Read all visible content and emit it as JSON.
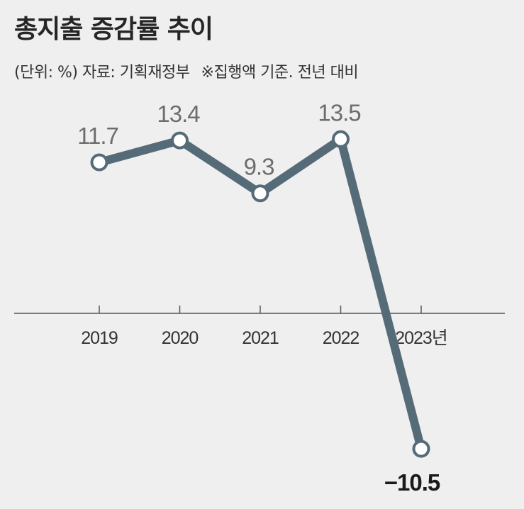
{
  "header": {
    "title": "총지출 증감률 추이",
    "unit_note": "(단위: %) 자료: 기획재정부",
    "basis_note": "※집행액 기준. 전년 대비"
  },
  "colors": {
    "background": "#efefef",
    "line": "#566b78",
    "marker_fill": "#ffffff",
    "axis": "#555555",
    "label_positive": "#6d6d6d",
    "label_negative": "#1a1a1a"
  },
  "chart_data": {
    "type": "line",
    "title": "총지출 증감률 추이",
    "unit": "%",
    "categories": [
      "2019",
      "2020",
      "2021",
      "2022",
      "2023년"
    ],
    "series": [
      {
        "name": "총지출 증감률",
        "values": [
          11.7,
          13.4,
          9.3,
          13.5,
          -10.5
        ],
        "labels": [
          "11.7",
          "13.4",
          "9.3",
          "13.5",
          "−10.5"
        ]
      }
    ],
    "ylim": [
      -12,
      16
    ],
    "grid": false,
    "legend": "none"
  }
}
